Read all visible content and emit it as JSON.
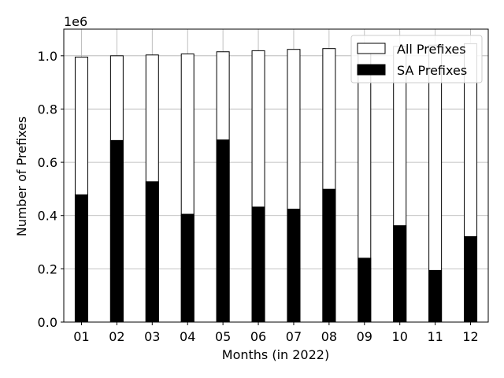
{
  "chart_data": {
    "type": "bar",
    "stacked": false,
    "overlay": true,
    "categories": [
      "01",
      "02",
      "03",
      "04",
      "05",
      "06",
      "07",
      "08",
      "09",
      "10",
      "11",
      "12"
    ],
    "series": [
      {
        "name": "All Prefixes",
        "fill": "#ffffff",
        "edge": "#000000",
        "values": [
          995000,
          1000000,
          1003000,
          1007000,
          1015000,
          1019000,
          1024000,
          1027000,
          1032000,
          1035000,
          1040000,
          1045000
        ]
      },
      {
        "name": "SA Prefixes",
        "fill": "#000000",
        "edge": "#000000",
        "values": [
          478000,
          682000,
          527000,
          405000,
          684000,
          432000,
          424000,
          499000,
          240000,
          362000,
          194000,
          321000
        ]
      }
    ],
    "xlabel": "Months (in 2022)",
    "ylabel": "Number of Prefixes",
    "offset_text": "1e6",
    "ylim": [
      0,
      1100000
    ],
    "yticks": [
      0,
      200000,
      400000,
      600000,
      800000,
      1000000
    ],
    "ytick_labels": [
      "0.0",
      "0.2",
      "0.4",
      "0.6",
      "0.8",
      "1.0"
    ],
    "grid": true,
    "legend_position": "upper right"
  }
}
